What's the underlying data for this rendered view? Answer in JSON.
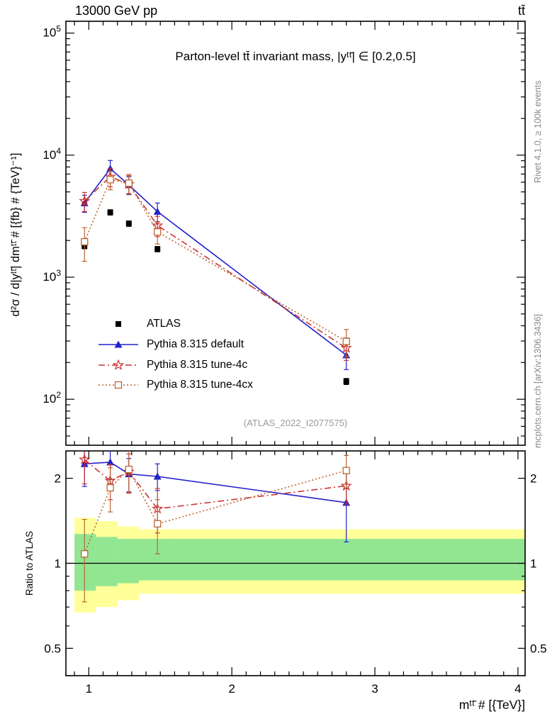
{
  "header": {
    "left": "13000 GeV pp",
    "right": "tt̄"
  },
  "side_notes": {
    "rivet": "Rivet 4.1.0, ≥ 100k events",
    "mcplots": "mcplots.cern.ch [arXiv:1306.3436]"
  },
  "watermark": "(ATLAS_2022_I2077575)",
  "chart_data": {
    "type": "line",
    "title": "Parton-level tt̄ invariant mass, |yᵗᵗ̄| ∈ [0.2,0.5]",
    "xlabel": "mᵗᵗ̄ # [{TeV}]",
    "ylabel": "d²σ / d|yᵗᵗ̄| dmᵗᵗ̄ # [{fb} # {TeV}⁻¹]",
    "ratio_ylabel": "Ratio to ATLAS",
    "grid": false,
    "legend_position": "middle-left",
    "x_axis": {
      "lim": [
        0.84,
        4.05
      ],
      "ticks": [
        1,
        2,
        3,
        4
      ],
      "minor_step": 0.1,
      "scale": "linear"
    },
    "y_axis_main": {
      "lim": [
        42,
        125000
      ],
      "scale": "log",
      "decade_ticks": [
        2,
        3,
        4,
        5
      ]
    },
    "y_axis_ratio": {
      "lim": [
        0.4,
        2.5
      ],
      "scale": "log",
      "ticks": [
        0.5,
        1,
        2
      ],
      "minor_ticks": [
        0.4,
        0.6,
        0.7,
        0.8,
        0.9
      ]
    },
    "x": [
      0.97,
      1.15,
      1.28,
      1.48,
      2.8
    ],
    "series": [
      {
        "name": "ATLAS",
        "color": "#000000",
        "marker": "square-filled",
        "line": "none",
        "values": [
          1800,
          3400,
          2750,
          1700,
          140
        ],
        "yerr": [
          90,
          170,
          140,
          85,
          8
        ],
        "ratio": null,
        "ratio_err": null
      },
      {
        "name": "Pythia 8.315 default",
        "color": "#2222cc",
        "marker": "triangle-filled",
        "line": "solid",
        "values": [
          4050,
          7750,
          5700,
          3450,
          230
        ],
        "yerr": [
          650,
          1300,
          950,
          600,
          55
        ],
        "ratio": [
          2.25,
          2.28,
          2.07,
          2.03,
          1.64
        ],
        "ratio_err": [
          0.38,
          0.3,
          0.28,
          0.22,
          0.45
        ]
      },
      {
        "name": "Pythia 8.315 tune-4c",
        "color": "#cc3333",
        "marker": "star-open",
        "line": "dashdot",
        "values": [
          4200,
          6650,
          5800,
          2650,
          263
        ],
        "yerr": [
          750,
          1150,
          1000,
          500,
          55
        ],
        "ratio": [
          2.33,
          1.96,
          2.11,
          1.56,
          1.88
        ],
        "ratio_err": [
          0.42,
          0.28,
          0.33,
          0.28,
          0.26
        ]
      },
      {
        "name": "Pythia 8.315 tune-4cx",
        "color": "#bb6633",
        "marker": "square-open",
        "line": "dotted",
        "values": [
          1950,
          6300,
          5900,
          2350,
          298
        ],
        "yerr": [
          600,
          1100,
          1050,
          480,
          75
        ],
        "ratio": [
          1.08,
          1.85,
          2.15,
          1.38,
          2.13
        ],
        "ratio_err": [
          0.35,
          0.33,
          0.38,
          0.3,
          0.28
        ]
      }
    ],
    "bands": {
      "edges": [
        0.9,
        1.05,
        1.2,
        1.35,
        1.6,
        4.05
      ],
      "yellow": {
        "color": "#ffff99",
        "lo": [
          0.67,
          0.7,
          0.74,
          0.78,
          0.78
        ],
        "hi": [
          1.45,
          1.41,
          1.35,
          1.32,
          1.32
        ]
      },
      "green": {
        "color": "#92e692",
        "lo": [
          0.8,
          0.83,
          0.85,
          0.87,
          0.87
        ],
        "hi": [
          1.27,
          1.24,
          1.22,
          1.22,
          1.22
        ]
      }
    }
  }
}
